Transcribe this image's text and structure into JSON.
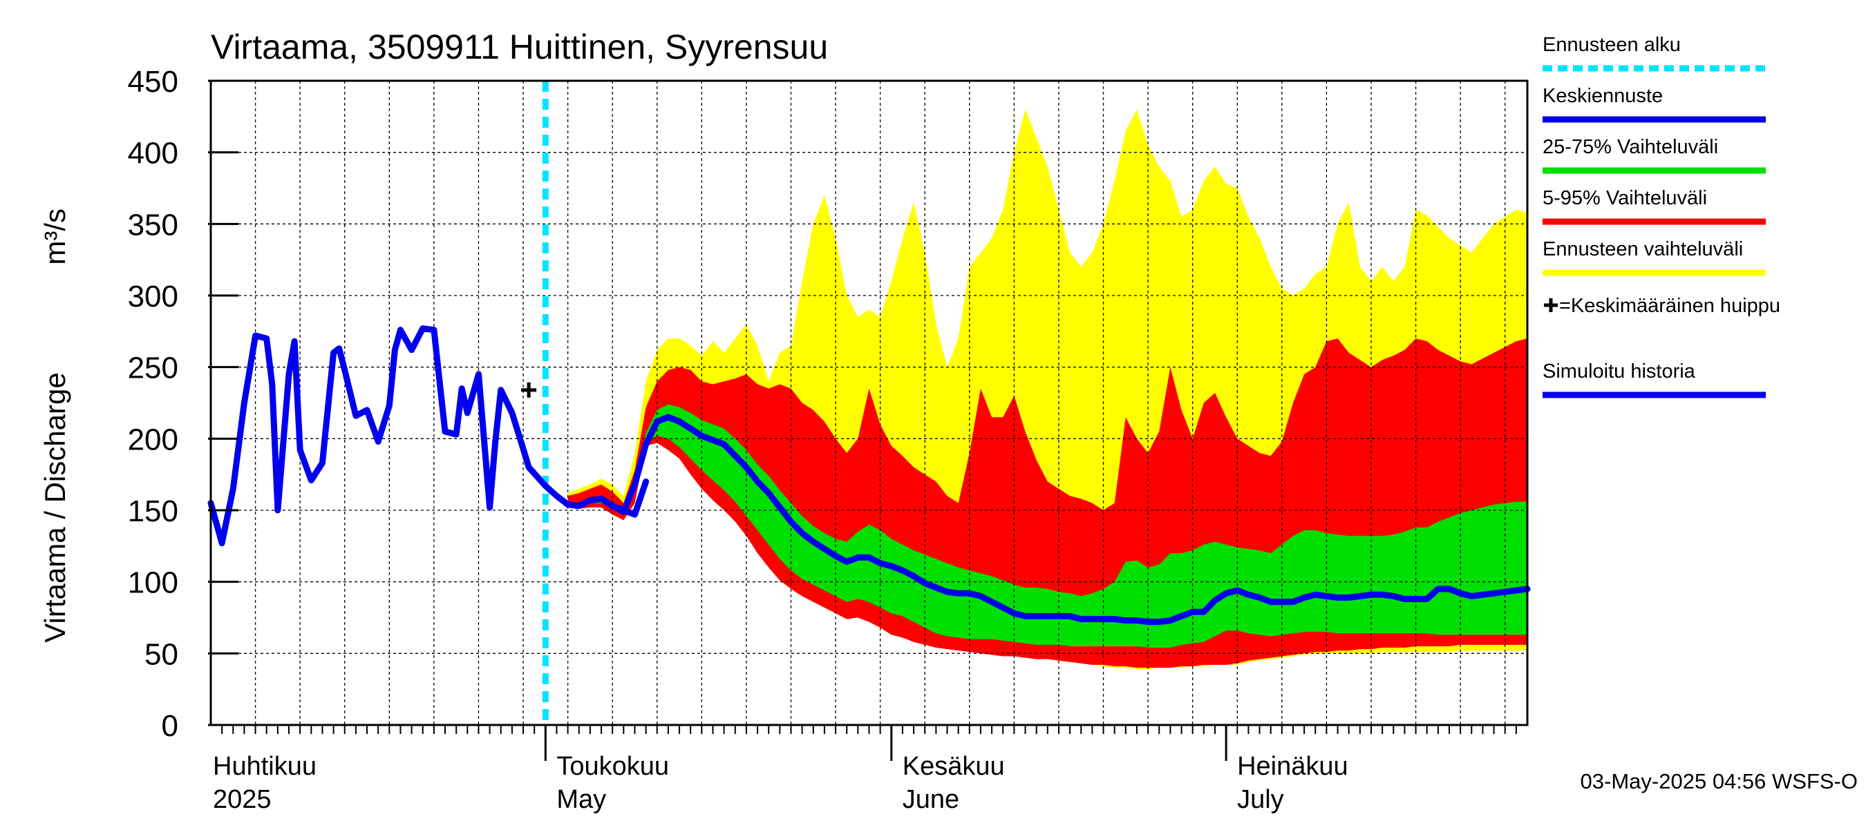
{
  "chart_data": {
    "type": "area",
    "title": "Virtaama, 3509911 Huittinen, Syyrensuu",
    "ylabel": "Virtaama / Discharge",
    "yunit": "m³/s",
    "ylim": [
      0,
      450
    ],
    "yticks": [
      0,
      50,
      100,
      150,
      200,
      250,
      300,
      350,
      400,
      450
    ],
    "x_range_days": [
      0,
      118
    ],
    "months": [
      {
        "day": 0,
        "fi": "Huhtikuu",
        "en": "2025"
      },
      {
        "day": 30,
        "fi": "Toukokuu",
        "en": "May"
      },
      {
        "day": 61,
        "fi": "Kesäkuu",
        "en": "June"
      },
      {
        "day": 91,
        "fi": "Heinäkuu",
        "en": "July"
      }
    ],
    "forecast_start_day": 30,
    "mean_peak": {
      "day": 28.5,
      "value": 234,
      "symbol": "+"
    },
    "legend": [
      {
        "label": "Ennusteen alku",
        "color": "#00e5ff",
        "style": "dashed"
      },
      {
        "label": "Keskiennuste",
        "color": "#0000ee",
        "style": "line"
      },
      {
        "label": "25-75% Vaihteluväli",
        "color": "#00e000",
        "style": "line"
      },
      {
        "label": "5-95% Vaihteluväli",
        "color": "#ff0000",
        "style": "line"
      },
      {
        "label": "Ennusteen vaihteluväli",
        "color": "#ffff00",
        "style": "line"
      },
      {
        "label": "=Keskimääräinen huippu",
        "color": "#000000",
        "style": "plus"
      },
      {
        "label": "Simuloitu historia",
        "color": "#0000ee",
        "style": "line"
      }
    ],
    "footer": "03-May-2025 04:56 WSFS-O",
    "series": [
      {
        "name": "Simuloitu historia",
        "color": "#0000ee",
        "x": [
          0,
          1,
          2,
          3,
          4,
          5,
          5.5,
          6,
          7,
          7.5,
          8,
          9,
          10,
          11,
          11.5,
          12,
          13,
          14,
          15,
          16,
          16.5,
          17,
          18,
          19,
          20,
          21,
          22,
          22.5,
          23,
          24,
          25,
          25.5,
          26,
          27,
          28,
          28.5,
          30,
          31,
          32,
          33,
          34,
          35,
          36,
          37,
          38,
          39
        ],
        "values": [
          155,
          127,
          165,
          225,
          272,
          270,
          238,
          150,
          245,
          268,
          192,
          171,
          183,
          260,
          263,
          248,
          216,
          220,
          198,
          223,
          262,
          276,
          262,
          277,
          276,
          205,
          203,
          235,
          218,
          245,
          152,
          198,
          234,
          218,
          193,
          180,
          167,
          160,
          154,
          153,
          157,
          158,
          153,
          150,
          147,
          170
        ]
      },
      {
        "name": "Keskiennuste",
        "color": "#0000ee",
        "x": [
          32,
          33,
          34,
          35,
          36,
          37,
          38,
          39,
          40,
          41,
          42,
          43,
          44,
          45,
          46,
          47,
          48,
          49,
          50,
          51,
          52,
          53,
          54,
          55,
          56,
          57,
          58,
          59,
          60,
          61,
          62,
          63,
          64,
          65,
          66,
          67,
          68,
          69,
          70,
          71,
          72,
          73,
          74,
          75,
          76,
          77,
          78,
          79,
          80,
          81,
          82,
          83,
          84,
          85,
          86,
          87,
          88,
          89,
          90,
          91,
          92,
          93,
          94,
          95,
          96,
          97,
          98,
          99,
          100,
          101,
          102,
          103,
          104,
          105,
          106,
          107,
          108,
          109,
          110,
          111,
          112,
          113,
          114,
          115,
          116,
          117,
          118
        ],
        "values": [
          154,
          153,
          157,
          158,
          153,
          149,
          168,
          196,
          212,
          215,
          212,
          207,
          202,
          199,
          196,
          188,
          180,
          170,
          162,
          152,
          142,
          134,
          128,
          123,
          118,
          114,
          117,
          117,
          113,
          111,
          108,
          104,
          99,
          96,
          93,
          92,
          92,
          90,
          86,
          82,
          78,
          76,
          76,
          76,
          76,
          76,
          74,
          74,
          74,
          74,
          73,
          73,
          72,
          72,
          73,
          76,
          79,
          79,
          87,
          92,
          94,
          91,
          89,
          86,
          86,
          86,
          89,
          91,
          90,
          89,
          89,
          90,
          91,
          91,
          90,
          88,
          88,
          88,
          95,
          95,
          92,
          90,
          91,
          92,
          93,
          94,
          95
        ]
      }
    ],
    "bands": [
      {
        "name": "Ennusteen vaihteluväli",
        "color": "#ffff00",
        "x": [
          32,
          33,
          34,
          35,
          36,
          37,
          38,
          39,
          40,
          41,
          42,
          43,
          44,
          45,
          46,
          47,
          48,
          49,
          50,
          51,
          52,
          53,
          54,
          55,
          56,
          57,
          58,
          59,
          60,
          61,
          62,
          63,
          64,
          65,
          66,
          67,
          68,
          69,
          70,
          71,
          72,
          73,
          74,
          75,
          76,
          77,
          78,
          79,
          80,
          81,
          82,
          83,
          84,
          85,
          86,
          87,
          88,
          89,
          90,
          91,
          92,
          93,
          94,
          95,
          96,
          97,
          98,
          99,
          100,
          101,
          102,
          103,
          104,
          105,
          106,
          107,
          108,
          109,
          110,
          111,
          112,
          113,
          114,
          115,
          116,
          117,
          118
        ],
        "upper": [
          162,
          165,
          168,
          172,
          168,
          160,
          190,
          240,
          262,
          270,
          270,
          265,
          258,
          268,
          260,
          270,
          280,
          265,
          240,
          260,
          265,
          310,
          350,
          370,
          340,
          300,
          285,
          290,
          285,
          310,
          340,
          365,
          330,
          280,
          250,
          270,
          320,
          330,
          340,
          360,
          400,
          430,
          410,
          390,
          360,
          330,
          320,
          330,
          350,
          380,
          415,
          430,
          405,
          390,
          380,
          355,
          360,
          380,
          390,
          378,
          375,
          355,
          340,
          320,
          305,
          300,
          305,
          315,
          320,
          350,
          365,
          320,
          310,
          320,
          310,
          320,
          360,
          356,
          348,
          340,
          335,
          330,
          340,
          350,
          355,
          360,
          358
        ],
        "lower": [
          154,
          152,
          154,
          154,
          150,
          146,
          160,
          196,
          200,
          197,
          190,
          180,
          172,
          165,
          158,
          150,
          140,
          130,
          118,
          108,
          100,
          95,
          90,
          86,
          80,
          76,
          78,
          74,
          70,
          66,
          65,
          62,
          60,
          57,
          55,
          54,
          53,
          52,
          51,
          50,
          49,
          48,
          47,
          46,
          45,
          44,
          43,
          42,
          41,
          40,
          40,
          39,
          39,
          40,
          40,
          40,
          41,
          41,
          42,
          42,
          42,
          44,
          45,
          46,
          47,
          48,
          49,
          50,
          50,
          50,
          50,
          50,
          50,
          51,
          51,
          51,
          51,
          51,
          51,
          51,
          52,
          52,
          52,
          52,
          52,
          52,
          52
        ]
      },
      {
        "name": "5-95% Vaihteluväli",
        "color": "#ff0000",
        "x": [
          32,
          33,
          34,
          35,
          36,
          37,
          38,
          39,
          40,
          41,
          42,
          43,
          44,
          45,
          46,
          47,
          48,
          49,
          50,
          51,
          52,
          53,
          54,
          55,
          56,
          57,
          58,
          59,
          60,
          61,
          62,
          63,
          64,
          65,
          66,
          67,
          68,
          69,
          70,
          71,
          72,
          73,
          74,
          75,
          76,
          77,
          78,
          79,
          80,
          81,
          82,
          83,
          84,
          85,
          86,
          87,
          88,
          89,
          90,
          91,
          92,
          93,
          94,
          95,
          96,
          97,
          98,
          99,
          100,
          101,
          102,
          103,
          104,
          105,
          106,
          107,
          108,
          109,
          110,
          111,
          112,
          113,
          114,
          115,
          116,
          117,
          118
        ],
        "upper": [
          160,
          162,
          165,
          168,
          163,
          155,
          178,
          222,
          240,
          248,
          250,
          248,
          240,
          238,
          240,
          242,
          245,
          238,
          235,
          238,
          235,
          225,
          220,
          212,
          200,
          190,
          200,
          235,
          210,
          195,
          188,
          180,
          175,
          170,
          160,
          155,
          190,
          235,
          215,
          215,
          230,
          205,
          185,
          170,
          165,
          160,
          158,
          155,
          150,
          155,
          215,
          200,
          190,
          205,
          250,
          220,
          200,
          225,
          232,
          215,
          200,
          195,
          190,
          188,
          198,
          225,
          245,
          250,
          268,
          270,
          260,
          255,
          250,
          255,
          258,
          262,
          270,
          268,
          262,
          258,
          254,
          252,
          256,
          260,
          264,
          268,
          270
        ],
        "lower": [
          154,
          151,
          152,
          152,
          147,
          143,
          155,
          195,
          197,
          192,
          186,
          175,
          165,
          157,
          150,
          142,
          132,
          120,
          110,
          101,
          95,
          90,
          86,
          82,
          78,
          74,
          75,
          72,
          68,
          63,
          61,
          58,
          56,
          54,
          53,
          52,
          51,
          50,
          49,
          48,
          48,
          47,
          46,
          46,
          45,
          44,
          43,
          42,
          42,
          41,
          41,
          40,
          40,
          40,
          40,
          41,
          41,
          42,
          42,
          42,
          43,
          45,
          46,
          47,
          48,
          49,
          50,
          51,
          51,
          52,
          52,
          53,
          53,
          54,
          54,
          54,
          55,
          55,
          55,
          55,
          56,
          56,
          56,
          56,
          56,
          56,
          56
        ]
      },
      {
        "name": "25-75% Vaihteluväli",
        "color": "#00e000",
        "x": [
          32,
          33,
          34,
          35,
          36,
          37,
          38,
          39,
          40,
          41,
          42,
          43,
          44,
          45,
          46,
          47,
          48,
          49,
          50,
          51,
          52,
          53,
          54,
          55,
          56,
          57,
          58,
          59,
          60,
          61,
          62,
          63,
          64,
          65,
          66,
          67,
          68,
          69,
          70,
          71,
          72,
          73,
          74,
          75,
          76,
          77,
          78,
          79,
          80,
          81,
          82,
          83,
          84,
          85,
          86,
          87,
          88,
          89,
          90,
          91,
          92,
          93,
          94,
          95,
          96,
          97,
          98,
          99,
          100,
          101,
          102,
          103,
          104,
          105,
          106,
          107,
          108,
          109,
          110,
          111,
          112,
          113,
          114,
          115,
          116,
          117,
          118
        ],
        "upper": [
          156,
          155,
          159,
          160,
          155,
          151,
          170,
          204,
          220,
          224,
          222,
          218,
          213,
          210,
          207,
          200,
          192,
          182,
          174,
          164,
          155,
          146,
          139,
          134,
          130,
          128,
          135,
          140,
          136,
          130,
          126,
          122,
          119,
          116,
          113,
          110,
          108,
          106,
          104,
          101,
          98,
          96,
          96,
          95,
          93,
          92,
          90,
          92,
          95,
          100,
          114,
          115,
          110,
          112,
          120,
          120,
          122,
          126,
          128,
          126,
          124,
          123,
          122,
          120,
          126,
          132,
          136,
          136,
          134,
          133,
          132,
          132,
          132,
          132,
          133,
          135,
          138,
          138,
          142,
          145,
          148,
          150,
          152,
          154,
          155,
          156,
          156
        ],
        "lower": [
          154,
          152,
          155,
          155,
          151,
          147,
          162,
          198,
          202,
          200,
          194,
          186,
          178,
          171,
          164,
          156,
          146,
          136,
          126,
          116,
          108,
          102,
          98,
          94,
          90,
          86,
          88,
          86,
          82,
          78,
          76,
          72,
          68,
          64,
          62,
          61,
          60,
          60,
          60,
          59,
          58,
          57,
          56,
          56,
          56,
          55,
          55,
          55,
          55,
          55,
          55,
          55,
          54,
          54,
          54,
          56,
          57,
          58,
          62,
          66,
          66,
          64,
          63,
          62,
          63,
          64,
          65,
          65,
          65,
          64,
          64,
          64,
          64,
          64,
          64,
          64,
          64,
          64,
          63,
          63,
          63,
          63,
          63,
          63,
          63,
          63,
          63
        ]
      }
    ]
  }
}
